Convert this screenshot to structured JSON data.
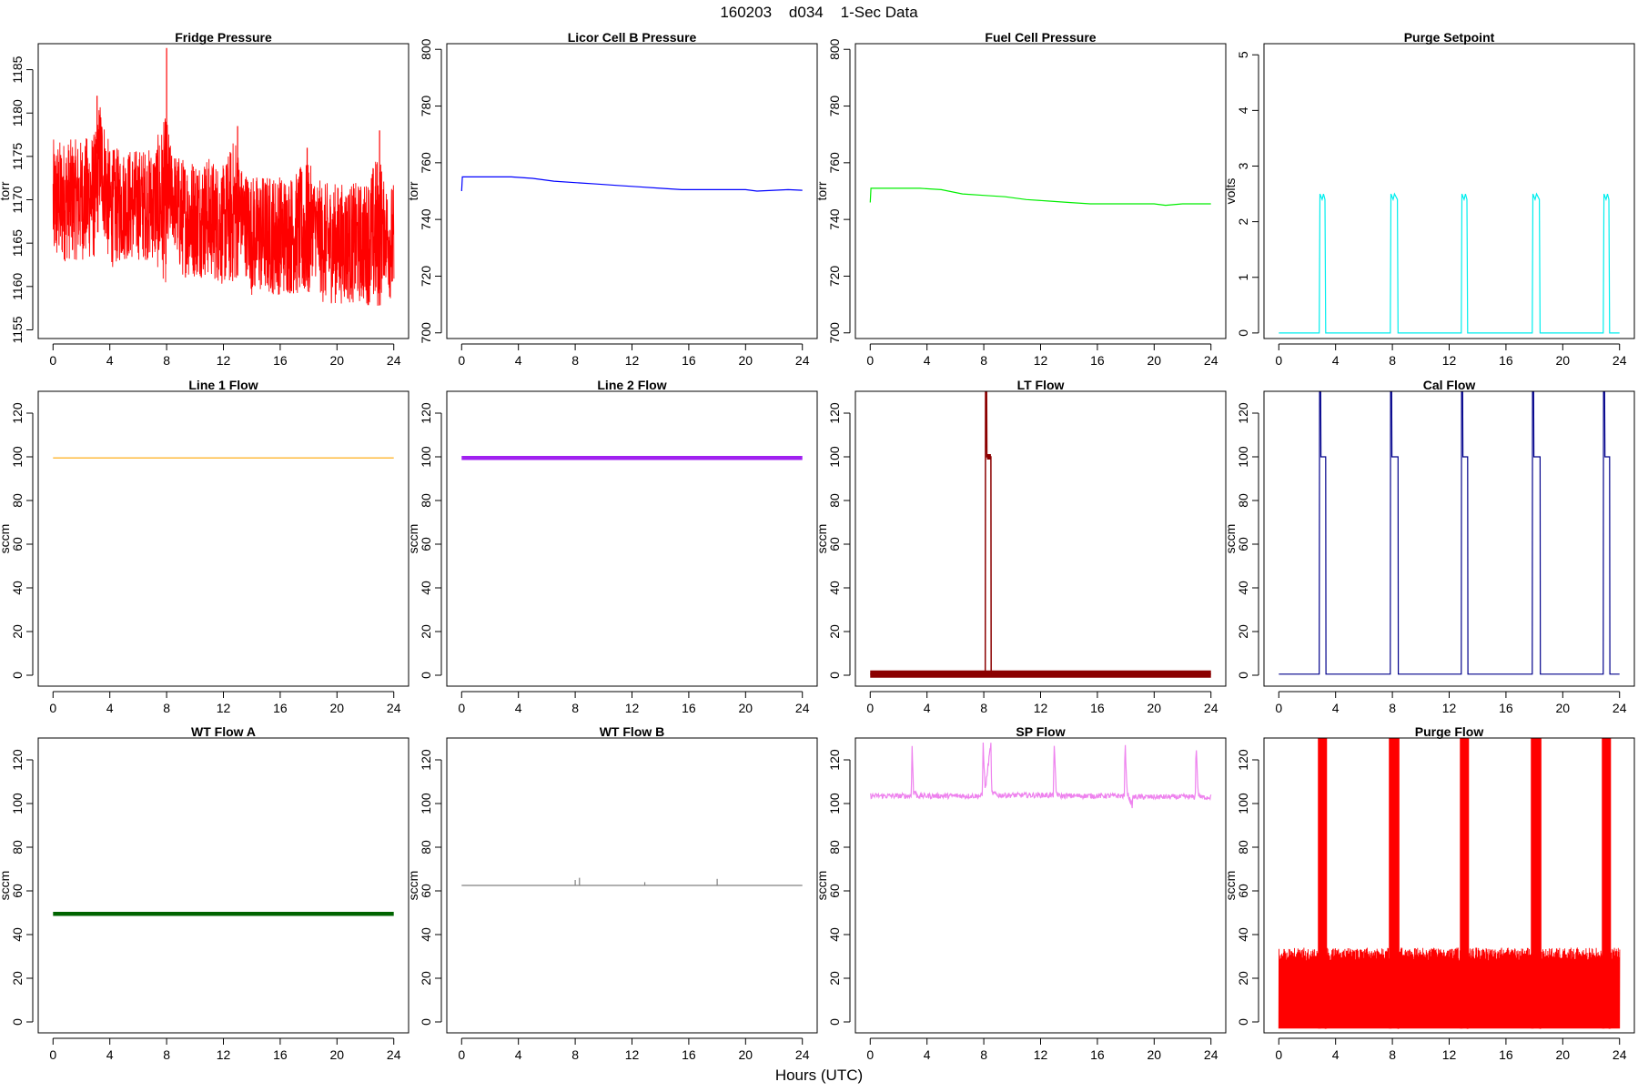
{
  "figure": {
    "title": "160203    d034    1-Sec Data",
    "xlabel": "Hours (UTC)"
  },
  "chart_data": [
    {
      "type": "line",
      "title": "Fridge Pressure",
      "ylabel": "torr",
      "color": "#ff0000",
      "xlim": [
        0,
        24
      ],
      "ylim": [
        1154,
        1188
      ],
      "xticks": [
        0,
        4,
        8,
        12,
        16,
        20,
        24
      ],
      "yticks": [
        1155,
        1160,
        1165,
        1170,
        1175,
        1180,
        1185
      ],
      "noise_band": {
        "x": [
          0,
          1,
          2,
          3,
          3.3,
          4,
          5,
          6,
          7,
          8,
          8.3,
          9,
          10,
          11,
          12,
          12.9,
          13.2,
          14,
          15,
          16,
          17,
          18,
          18.3,
          19,
          20,
          21,
          22,
          23,
          23.3,
          24
        ],
        "low": [
          1162,
          1163,
          1163,
          1163,
          1168,
          1162,
          1163,
          1163,
          1163,
          1160,
          1166,
          1161,
          1161,
          1161,
          1160,
          1160,
          1163,
          1159,
          1159,
          1159,
          1159,
          1158,
          1162,
          1158,
          1158,
          1158,
          1158,
          1157,
          1161,
          1157
        ],
        "high": [
          1177,
          1177,
          1177,
          1178,
          1182,
          1176,
          1176,
          1176,
          1176,
          1180,
          1176,
          1175,
          1175,
          1175,
          1174,
          1178,
          1174,
          1173,
          1173,
          1173,
          1173,
          1175,
          1173,
          1172,
          1172,
          1172,
          1172,
          1176,
          1172,
          1172
        ]
      },
      "spikes": [
        [
          3.1,
          1182
        ],
        [
          8.0,
          1187.5
        ],
        [
          13.0,
          1178.5
        ],
        [
          17.9,
          1176
        ],
        [
          23.0,
          1178
        ]
      ]
    },
    {
      "type": "line",
      "title": "Licor Cell B Pressure",
      "ylabel": "torr",
      "color": "#0000ff",
      "xlim": [
        0,
        24
      ],
      "ylim": [
        698,
        802
      ],
      "xticks": [
        0,
        4,
        8,
        12,
        16,
        20,
        24
      ],
      "yticks": [
        700,
        720,
        740,
        760,
        780,
        800
      ],
      "x": [
        0,
        0.05,
        0.5,
        2,
        3.5,
        5,
        6.5,
        8,
        9.5,
        11,
        12.5,
        14,
        15.5,
        17,
        18.5,
        20,
        20.8,
        22,
        23,
        24
      ],
      "y": [
        750,
        755,
        755,
        755,
        755,
        754.5,
        753.5,
        753,
        752.5,
        752,
        751.5,
        751,
        750.5,
        750.5,
        750.5,
        750.5,
        750,
        750.3,
        750.5,
        750.3
      ]
    },
    {
      "type": "line",
      "title": "Fuel Cell Pressure",
      "ylabel": "torr",
      "color": "#00ee00",
      "xlim": [
        0,
        24
      ],
      "ylim": [
        698,
        802
      ],
      "xticks": [
        0,
        4,
        8,
        12,
        16,
        20,
        24
      ],
      "yticks": [
        700,
        720,
        740,
        760,
        780,
        800
      ],
      "x": [
        0,
        0.05,
        0.5,
        2,
        3.5,
        5,
        6.5,
        8,
        9.5,
        11,
        12.5,
        14,
        15.5,
        17,
        18.5,
        20,
        20.8,
        22,
        23,
        24
      ],
      "y": [
        746,
        751,
        751,
        751,
        751,
        750.5,
        749,
        748.5,
        748,
        747,
        746.5,
        746,
        745.5,
        745.5,
        745.5,
        745.5,
        745,
        745.5,
        745.5,
        745.5
      ]
    },
    {
      "type": "line",
      "title": "Purge Setpoint",
      "ylabel": "volts",
      "color": "#00eeee",
      "xlim": [
        0,
        24
      ],
      "ylim": [
        -0.1,
        5.2
      ],
      "xticks": [
        0,
        4,
        8,
        12,
        16,
        20,
        24
      ],
      "yticks": [
        0,
        1,
        2,
        3,
        4,
        5
      ],
      "x": [
        0,
        2.85,
        2.9,
        3.05,
        3.15,
        3.25,
        3.3,
        7.85,
        7.9,
        8.05,
        8.15,
        8.35,
        8.4,
        12.85,
        12.9,
        13.05,
        13.15,
        13.25,
        13.3,
        17.85,
        17.9,
        18.05,
        18.15,
        18.35,
        18.4,
        22.85,
        22.9,
        23.05,
        23.15,
        23.25,
        23.3,
        24
      ],
      "y": [
        0,
        0,
        2.5,
        2.4,
        2.5,
        2.4,
        0,
        0,
        2.5,
        2.4,
        2.5,
        2.4,
        0,
        0,
        2.5,
        2.4,
        2.5,
        2.4,
        0,
        0,
        2.5,
        2.4,
        2.5,
        2.4,
        0,
        0,
        2.5,
        2.4,
        2.5,
        2.4,
        0,
        0
      ]
    },
    {
      "type": "line",
      "title": "Line 1 Flow",
      "ylabel": "sccm",
      "color": "#ffa500",
      "xlim": [
        0,
        24
      ],
      "ylim": [
        -5,
        130
      ],
      "xticks": [
        0,
        4,
        8,
        12,
        16,
        20,
        24
      ],
      "yticks": [
        0,
        20,
        40,
        60,
        80,
        100,
        120
      ],
      "x": [
        0,
        24
      ],
      "y": [
        99.5,
        99.5
      ]
    },
    {
      "type": "line",
      "title": "Line 2 Flow",
      "ylabel": "sccm",
      "color": "#a020f0",
      "xlim": [
        0,
        24
      ],
      "ylim": [
        -5,
        130
      ],
      "xticks": [
        0,
        4,
        8,
        12,
        16,
        20,
        24
      ],
      "yticks": [
        0,
        20,
        40,
        60,
        80,
        100,
        120
      ],
      "x": [
        0,
        24
      ],
      "y": [
        99.5,
        99.5
      ]
    },
    {
      "type": "line",
      "title": "LT Flow",
      "ylabel": "sccm",
      "color": "#8b0000",
      "xlim": [
        0,
        24
      ],
      "ylim": [
        -5,
        130
      ],
      "xticks": [
        0,
        4,
        8,
        12,
        16,
        20,
        24
      ],
      "yticks": [
        0,
        20,
        40,
        60,
        80,
        100,
        120
      ],
      "x": [
        0,
        8.1,
        8.12,
        8.2,
        8.22,
        8.5,
        8.52,
        24
      ],
      "y": [
        0.5,
        0.5,
        130,
        130,
        100,
        100,
        0.5,
        0.5
      ]
    },
    {
      "type": "line",
      "title": "Cal Flow",
      "ylabel": "sccm",
      "color": "#00008b",
      "xlim": [
        0,
        24
      ],
      "ylim": [
        -5,
        130
      ],
      "xticks": [
        0,
        4,
        8,
        12,
        16,
        20,
        24
      ],
      "yticks": [
        0,
        20,
        40,
        60,
        80,
        100,
        120
      ],
      "x": [
        0,
        2.85,
        2.87,
        2.95,
        2.97,
        3.3,
        3.32,
        7.85,
        7.87,
        7.95,
        7.97,
        8.4,
        8.42,
        12.85,
        12.87,
        12.95,
        12.97,
        13.3,
        13.32,
        17.85,
        17.87,
        17.95,
        17.97,
        18.4,
        18.42,
        22.85,
        22.87,
        22.95,
        22.97,
        23.3,
        23.32,
        24
      ],
      "y": [
        0.5,
        0.5,
        130,
        130,
        100,
        100,
        0.5,
        0.5,
        130,
        130,
        100,
        100,
        0.5,
        0.5,
        130,
        130,
        100,
        100,
        0.5,
        0.5,
        130,
        130,
        100,
        100,
        0.5,
        0.5,
        130,
        130,
        100,
        100,
        0.5,
        0.5
      ]
    },
    {
      "type": "line",
      "title": "WT Flow A",
      "ylabel": "sccm",
      "color": "#006400",
      "xlim": [
        0,
        24
      ],
      "ylim": [
        -5,
        130
      ],
      "xticks": [
        0,
        4,
        8,
        12,
        16,
        20,
        24
      ],
      "yticks": [
        0,
        20,
        40,
        60,
        80,
        100,
        120
      ],
      "x": [
        0,
        24
      ],
      "y": [
        49.5,
        49.5
      ]
    },
    {
      "type": "line",
      "title": "WT Flow B",
      "ylabel": "sccm",
      "color": "#808080",
      "xlim": [
        0,
        24
      ],
      "ylim": [
        -5,
        130
      ],
      "xticks": [
        0,
        4,
        8,
        12,
        16,
        20,
        24
      ],
      "yticks": [
        0,
        20,
        40,
        60,
        80,
        100,
        120
      ],
      "x": [
        0,
        24
      ],
      "y": [
        62.5,
        62.5
      ],
      "spikes": [
        [
          8.0,
          65
        ],
        [
          8.3,
          66
        ],
        [
          12.9,
          64
        ],
        [
          18.0,
          65.5
        ]
      ]
    },
    {
      "type": "line",
      "title": "SP Flow",
      "ylabel": "sccm",
      "color": "#ee82ee",
      "xlim": [
        0,
        24
      ],
      "ylim": [
        -5,
        130
      ],
      "xticks": [
        0,
        4,
        8,
        12,
        16,
        20,
        24
      ],
      "yticks": [
        0,
        20,
        40,
        60,
        80,
        100,
        120
      ],
      "x": [
        0,
        2.9,
        2.95,
        3.05,
        3.1,
        3.3,
        7.9,
        7.95,
        8.1,
        8.5,
        8.55,
        9,
        12.9,
        12.95,
        13.1,
        13.3,
        17.9,
        17.95,
        18.1,
        18.45,
        18.5,
        22.9,
        22.95,
        23.1,
        23.3,
        24
      ],
      "y": [
        103.5,
        103.5,
        128,
        104,
        106,
        103.5,
        103.5,
        128,
        106,
        128,
        105,
        103.8,
        103.8,
        128,
        105,
        103.5,
        103.5,
        128,
        105,
        99,
        103,
        103,
        128,
        104.5,
        102.8,
        103
      ],
      "noise": 1.2
    },
    {
      "type": "line",
      "title": "Purge Flow",
      "ylabel": "sccm",
      "color": "#ff0000",
      "xlim": [
        0,
        24
      ],
      "ylim": [
        -5,
        130
      ],
      "xticks": [
        0,
        4,
        8,
        12,
        16,
        20,
        24
      ],
      "yticks": [
        0,
        20,
        40,
        60,
        80,
        100,
        120
      ],
      "noise_band": {
        "x": [
          0,
          24
        ],
        "low": [
          -3,
          -3
        ],
        "high": [
          34,
          34
        ]
      },
      "purge_windows": [
        [
          2.85,
          3.3
        ],
        [
          7.85,
          8.4
        ],
        [
          12.85,
          13.3
        ],
        [
          17.85,
          18.4
        ],
        [
          22.85,
          23.3
        ]
      ]
    }
  ]
}
